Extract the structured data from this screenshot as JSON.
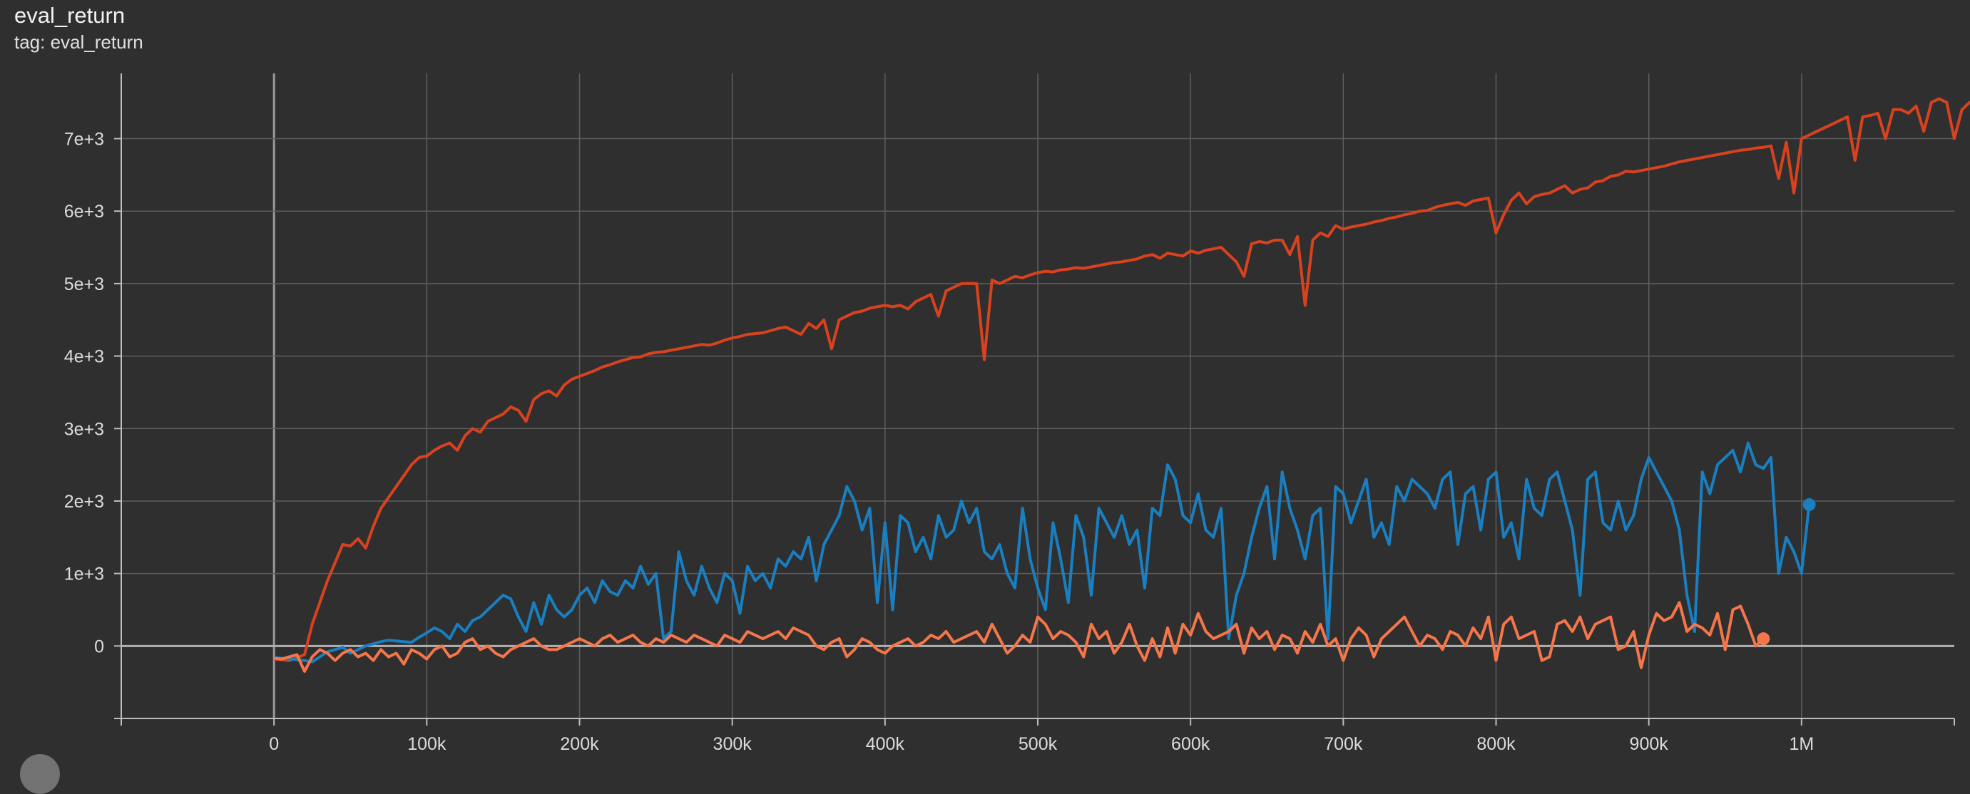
{
  "header": {
    "title": "eval_return",
    "tag": "tag: eval_return"
  },
  "colors": {
    "background": "#2f2f2f",
    "grid": "#5f5f5f",
    "axis": "#bdbdbd",
    "run_red": "#d8421e",
    "run_blue": "#1a7fc0",
    "run_orange": "#f5764a"
  },
  "chart_data": {
    "type": "line",
    "title": "eval_return",
    "xlabel": "",
    "ylabel": "",
    "xlim": [
      -100000,
      1100000
    ],
    "ylim": [
      -1000,
      7900
    ],
    "xticks": [
      0,
      100000,
      200000,
      300000,
      400000,
      500000,
      600000,
      700000,
      800000,
      900000,
      1000000
    ],
    "xtick_labels": [
      "0",
      "100k",
      "200k",
      "300k",
      "400k",
      "500k",
      "600k",
      "700k",
      "800k",
      "900k",
      "1M"
    ],
    "yticks": [
      0,
      1000,
      2000,
      3000,
      4000,
      5000,
      6000,
      7000
    ],
    "ytick_labels": [
      "0",
      "1e+3",
      "2e+3",
      "3e+3",
      "4e+3",
      "5e+3",
      "6e+3",
      "7e+3"
    ],
    "grid": true,
    "series": [
      {
        "color": "#d8421e",
        "x_start": 0,
        "x_step": 5000,
        "values": [
          -180,
          -190,
          -200,
          -160,
          -120,
          300,
          600,
          900,
          1150,
          1400,
          1380,
          1480,
          1350,
          1650,
          1900,
          2050,
          2200,
          2350,
          2500,
          2600,
          2620,
          2700,
          2760,
          2800,
          2700,
          2900,
          3000,
          2950,
          3100,
          3150,
          3200,
          3300,
          3250,
          3100,
          3400,
          3480,
          3520,
          3450,
          3600,
          3680,
          3720,
          3760,
          3800,
          3850,
          3880,
          3920,
          3950,
          3980,
          3990,
          4030,
          4050,
          4060,
          4080,
          4100,
          4120,
          4140,
          4160,
          4150,
          4180,
          4220,
          4250,
          4270,
          4300,
          4310,
          4320,
          4350,
          4380,
          4400,
          4350,
          4300,
          4450,
          4380,
          4500,
          4100,
          4500,
          4550,
          4600,
          4620,
          4660,
          4680,
          4700,
          4680,
          4700,
          4650,
          4750,
          4800,
          4850,
          4550,
          4900,
          4950,
          5000,
          5000,
          5000,
          3950,
          5050,
          5000,
          5050,
          5100,
          5080,
          5120,
          5150,
          5170,
          5160,
          5190,
          5200,
          5220,
          5210,
          5230,
          5250,
          5270,
          5290,
          5300,
          5320,
          5340,
          5380,
          5400,
          5350,
          5420,
          5400,
          5380,
          5450,
          5420,
          5460,
          5480,
          5500,
          5400,
          5300,
          5100,
          5550,
          5580,
          5560,
          5600,
          5600,
          5400,
          5650,
          4700,
          5600,
          5700,
          5650,
          5800,
          5750,
          5780,
          5800,
          5820,
          5850,
          5870,
          5900,
          5920,
          5950,
          5970,
          6000,
          6010,
          6050,
          6080,
          6100,
          6120,
          6080,
          6140,
          6160,
          6180,
          5700,
          5950,
          6150,
          6250,
          6100,
          6200,
          6230,
          6250,
          6300,
          6350,
          6250,
          6300,
          6320,
          6400,
          6420,
          6480,
          6500,
          6550,
          6540,
          6560,
          6580,
          6600,
          6620,
          6650,
          6680,
          6700,
          6720,
          6740,
          6760,
          6780,
          6800,
          6820,
          6840,
          6850,
          6870,
          6880,
          6900,
          6450,
          6950,
          6250,
          7000,
          7050,
          7100,
          7150,
          7200,
          7250,
          7300,
          6700,
          7300,
          7320,
          7350,
          7000,
          7400,
          7400,
          7350,
          7450,
          7100,
          7500,
          7550,
          7500,
          7000,
          7400,
          7500,
          7550,
          7550,
          7100,
          7600,
          7500,
          7600,
          7650,
          7750,
          7730
        ]
      },
      {
        "color": "#1a7fc0",
        "x_start": 0,
        "x_step": 5000,
        "values": [
          -160,
          -170,
          -180,
          -190,
          -200,
          -220,
          -150,
          -80,
          -50,
          -20,
          -100,
          -50,
          0,
          30,
          60,
          80,
          70,
          60,
          50,
          120,
          180,
          250,
          200,
          100,
          300,
          200,
          350,
          400,
          500,
          600,
          700,
          650,
          400,
          200,
          600,
          300,
          700,
          500,
          400,
          500,
          700,
          800,
          600,
          900,
          750,
          700,
          900,
          800,
          1100,
          850,
          1000,
          100,
          200,
          1300,
          900,
          700,
          1100,
          800,
          600,
          1000,
          900,
          450,
          1100,
          900,
          1000,
          800,
          1200,
          1100,
          1300,
          1200,
          1500,
          900,
          1400,
          1600,
          1800,
          2200,
          2000,
          1600,
          1900,
          600,
          1700,
          500,
          1800,
          1700,
          1300,
          1500,
          1200,
          1800,
          1500,
          1600,
          2000,
          1700,
          1900,
          1300,
          1200,
          1400,
          1000,
          800,
          1900,
          1200,
          800,
          500,
          1700,
          1200,
          600,
          1800,
          1500,
          700,
          1900,
          1700,
          1500,
          1800,
          1400,
          1600,
          800,
          1900,
          1800,
          2500,
          2300,
          1800,
          1700,
          2100,
          1600,
          1500,
          1900,
          100,
          700,
          1000,
          1500,
          1900,
          2200,
          1200,
          2400,
          1900,
          1600,
          1200,
          1800,
          1900,
          100,
          2200,
          2100,
          1700,
          2000,
          2300,
          1500,
          1700,
          1400,
          2200,
          2000,
          2300,
          2200,
          2100,
          1900,
          2300,
          2400,
          1400,
          2100,
          2200,
          1600,
          2300,
          2400,
          1500,
          1700,
          1200,
          2300,
          1900,
          1800,
          2300,
          2400,
          2000,
          1600,
          700,
          2300,
          2400,
          1700,
          1600,
          2000,
          1600,
          1800,
          2300,
          2600,
          2400,
          2200,
          2000,
          1600,
          700,
          200,
          2400,
          2100,
          2500,
          2600,
          2700,
          2400,
          2800,
          2500,
          2450,
          2600,
          1000,
          1500,
          1300,
          1000,
          1950
        ]
      },
      {
        "color": "#f5764a",
        "x_start": 0,
        "x_step": 5000,
        "values": [
          -170,
          -180,
          -150,
          -120,
          -350,
          -150,
          -50,
          -100,
          -200,
          -100,
          -50,
          -150,
          -100,
          -200,
          -50,
          -150,
          -100,
          -250,
          -50,
          -100,
          -180,
          -50,
          0,
          -150,
          -100,
          50,
          100,
          -50,
          0,
          -100,
          -150,
          -50,
          0,
          50,
          100,
          0,
          -50,
          -50,
          0,
          50,
          100,
          50,
          0,
          100,
          150,
          50,
          100,
          150,
          50,
          0,
          100,
          50,
          150,
          100,
          50,
          150,
          100,
          50,
          0,
          150,
          100,
          50,
          200,
          150,
          100,
          150,
          200,
          100,
          250,
          200,
          150,
          0,
          -50,
          50,
          100,
          -150,
          -50,
          100,
          50,
          -50,
          -100,
          0,
          50,
          100,
          0,
          50,
          150,
          100,
          200,
          50,
          100,
          150,
          200,
          50,
          300,
          100,
          -100,
          0,
          150,
          50,
          400,
          300,
          100,
          200,
          150,
          50,
          -150,
          300,
          100,
          200,
          -100,
          50,
          300,
          0,
          -200,
          100,
          -150,
          250,
          -100,
          300,
          150,
          450,
          200,
          100,
          150,
          200,
          300,
          -100,
          250,
          100,
          200,
          -50,
          150,
          100,
          -100,
          200,
          50,
          300,
          0,
          100,
          -200,
          100,
          250,
          150,
          -150,
          100,
          200,
          300,
          400,
          200,
          0,
          150,
          100,
          -50,
          200,
          150,
          0,
          250,
          100,
          400,
          -200,
          300,
          400,
          100,
          150,
          200,
          -200,
          -150,
          300,
          350,
          200,
          400,
          100,
          300,
          350,
          400,
          -50,
          0,
          200,
          -300,
          150,
          450,
          350,
          400,
          600,
          200,
          300,
          250,
          150,
          450,
          -50,
          500,
          550,
          300,
          0,
          100
        ]
      }
    ]
  }
}
